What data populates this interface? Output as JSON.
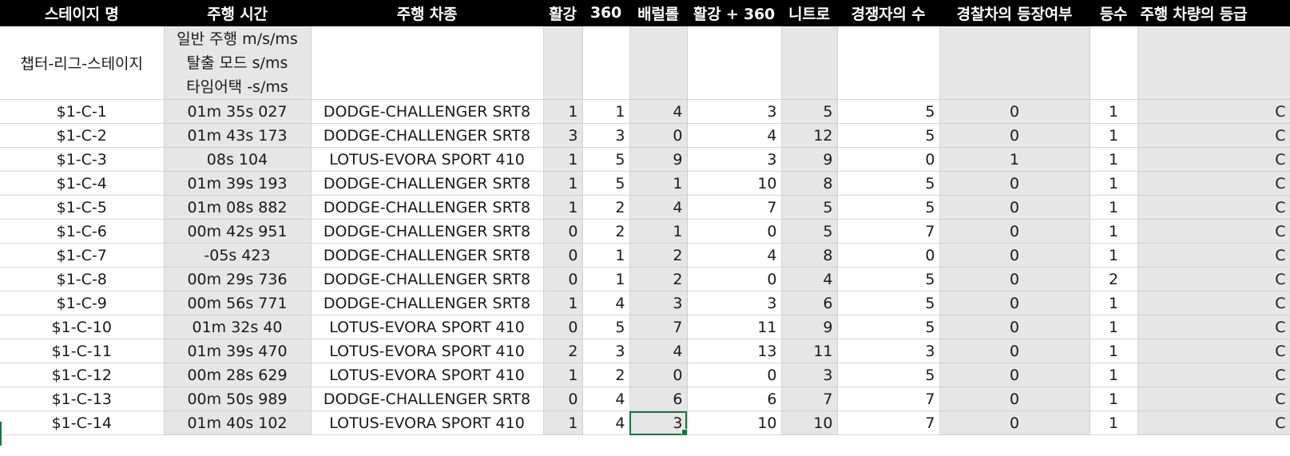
{
  "headers": [
    "스테이지 명",
    "주행 시간",
    "주행 차종",
    "활강",
    "360",
    "배럴롤",
    "활강 + 360",
    "니트로",
    "경쟁자의 수",
    "경찰차의 등장여부",
    "등수",
    "주행 차량의 등급"
  ],
  "note_row": {
    "stage": "챕터-리그-스테이지",
    "time_lines": [
      "일반 주행 m/s/ms",
      "탈출 모드 s/ms",
      "타임어택 -s/ms"
    ]
  },
  "rows": [
    {
      "stage": "$1-C-1",
      "time": "01m 35s 027",
      "car": "DODGE-CHALLENGER SRT8",
      "glide": "1",
      "spin": "1",
      "barrel": "4",
      "glide_spin": "3",
      "nitro": "5",
      "rivals": "5",
      "police": "0",
      "rank": "1",
      "grade": "C"
    },
    {
      "stage": "$1-C-2",
      "time": "01m 43s 173",
      "car": "DODGE-CHALLENGER SRT8",
      "glide": "3",
      "spin": "3",
      "barrel": "0",
      "glide_spin": "4",
      "nitro": "12",
      "rivals": "5",
      "police": "0",
      "rank": "1",
      "grade": "C"
    },
    {
      "stage": "$1-C-3",
      "time": "08s 104",
      "car": "LOTUS-EVORA SPORT 410",
      "glide": "1",
      "spin": "5",
      "barrel": "9",
      "glide_spin": "3",
      "nitro": "9",
      "rivals": "0",
      "police": "1",
      "rank": "1",
      "grade": "C"
    },
    {
      "stage": "$1-C-4",
      "time": "01m 39s 193",
      "car": "DODGE-CHALLENGER SRT8",
      "glide": "1",
      "spin": "5",
      "barrel": "1",
      "glide_spin": "10",
      "nitro": "8",
      "rivals": "5",
      "police": "0",
      "rank": "1",
      "grade": "C"
    },
    {
      "stage": "$1-C-5",
      "time": "01m 08s 882",
      "car": "DODGE-CHALLENGER SRT8",
      "glide": "1",
      "spin": "2",
      "barrel": "4",
      "glide_spin": "7",
      "nitro": "5",
      "rivals": "5",
      "police": "0",
      "rank": "1",
      "grade": "C"
    },
    {
      "stage": "$1-C-6",
      "time": "00m 42s 951",
      "car": "DODGE-CHALLENGER SRT8",
      "glide": "0",
      "spin": "2",
      "barrel": "1",
      "glide_spin": "0",
      "nitro": "5",
      "rivals": "7",
      "police": "0",
      "rank": "1",
      "grade": "C"
    },
    {
      "stage": "$1-C-7",
      "time": "-05s 423",
      "car": "DODGE-CHALLENGER SRT8",
      "glide": "0",
      "spin": "1",
      "barrel": "2",
      "glide_spin": "4",
      "nitro": "8",
      "rivals": "0",
      "police": "0",
      "rank": "1",
      "grade": "C"
    },
    {
      "stage": "$1-C-8",
      "time": "00m 29s 736",
      "car": "DODGE-CHALLENGER SRT8",
      "glide": "0",
      "spin": "1",
      "barrel": "2",
      "glide_spin": "0",
      "nitro": "4",
      "rivals": "5",
      "police": "0",
      "rank": "2",
      "grade": "C"
    },
    {
      "stage": "$1-C-9",
      "time": "00m 56s 771",
      "car": "DODGE-CHALLENGER SRT8",
      "glide": "1",
      "spin": "4",
      "barrel": "3",
      "glide_spin": "3",
      "nitro": "6",
      "rivals": "5",
      "police": "0",
      "rank": "1",
      "grade": "C"
    },
    {
      "stage": "$1-C-10",
      "time": "01m 32s 40",
      "car": "LOTUS-EVORA SPORT 410",
      "glide": "0",
      "spin": "5",
      "barrel": "7",
      "glide_spin": "11",
      "nitro": "9",
      "rivals": "5",
      "police": "0",
      "rank": "1",
      "grade": "C"
    },
    {
      "stage": "$1-C-11",
      "time": "01m 39s 470",
      "car": "LOTUS-EVORA SPORT 410",
      "glide": "2",
      "spin": "3",
      "barrel": "4",
      "glide_spin": "13",
      "nitro": "11",
      "rivals": "3",
      "police": "0",
      "rank": "1",
      "grade": "C"
    },
    {
      "stage": "$1-C-12",
      "time": "00m 28s 629",
      "car": "LOTUS-EVORA SPORT 410",
      "glide": "1",
      "spin": "2",
      "barrel": "0",
      "glide_spin": "0",
      "nitro": "3",
      "rivals": "5",
      "police": "0",
      "rank": "1",
      "grade": "C"
    },
    {
      "stage": "$1-C-13",
      "time": "00m 50s 989",
      "car": "DODGE-CHALLENGER SRT8",
      "glide": "0",
      "spin": "4",
      "barrel": "6",
      "glide_spin": "6",
      "nitro": "7",
      "rivals": "7",
      "police": "0",
      "rank": "1",
      "grade": "C"
    },
    {
      "stage": "$1-C-14",
      "time": "01m 40s 102",
      "car": "LOTUS-EVORA SPORT 410",
      "glide": "1",
      "spin": "4",
      "barrel": "3",
      "glide_spin": "10",
      "nitro": "10",
      "rivals": "7",
      "police": "0",
      "rank": "1",
      "grade": "C"
    }
  ],
  "selection": {
    "row": 13,
    "column": "barrel"
  },
  "colors": {
    "header_bg": "#000000",
    "header_text": "#ffffff",
    "shaded_column": "#e6e6e6",
    "selection": "#1e7145"
  }
}
